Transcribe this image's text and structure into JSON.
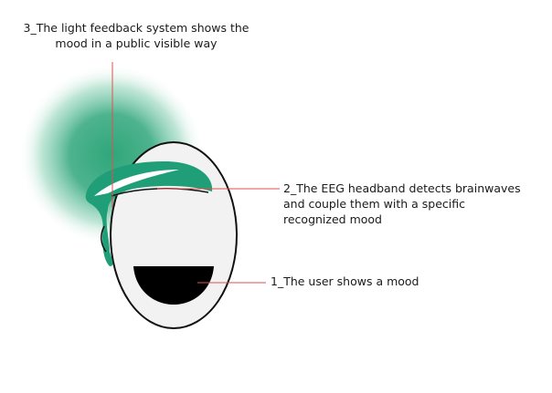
{
  "colors": {
    "glow": "#2fa67a",
    "headband": "#1f9e78",
    "headband_highlight": "#ffffff",
    "leader_line": "#d9534f",
    "head_fill": "#f2f2f2",
    "head_outline": "#111111",
    "mouth": "#000000",
    "text": "#1a1a1a"
  },
  "icons": {
    "head": "head-profile-icon",
    "headband": "eeg-headband-icon",
    "mouth": "mood-mouth-icon",
    "light": "light-glow-icon"
  },
  "annotations": {
    "light_feedback": "3_The light feedback system shows the\nmood in a public visible way",
    "eeg_headband": "2_The EEG headband detects brainwaves\nand couple them with a specific\nrecognized mood",
    "user_mood": "1_The user shows a mood"
  }
}
